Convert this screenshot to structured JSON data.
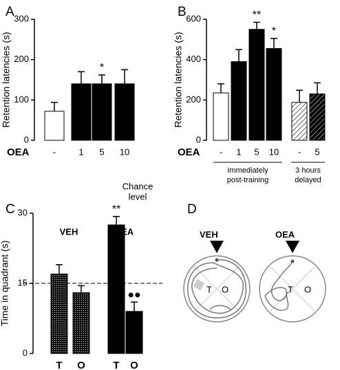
{
  "chart_data": [
    {
      "type": "bar",
      "panel": "A",
      "ylabel": "Retention latencies (s)",
      "xlabel": "OEA",
      "categories": [
        "-",
        "1",
        "5",
        "10"
      ],
      "values": [
        72,
        140,
        140,
        140
      ],
      "errors": [
        22,
        30,
        22,
        35
      ],
      "fills": [
        "#ffffff",
        "#000000",
        "#000000",
        "#000000"
      ],
      "annotations": [
        null,
        null,
        "*",
        null
      ],
      "ylim": [
        0,
        300
      ],
      "yticks": [
        0,
        100,
        200,
        300
      ]
    },
    {
      "type": "bar",
      "panel": "B",
      "ylabel": "Retention latencies (s)",
      "xlabel": "OEA",
      "categories": [
        "-",
        "1",
        "5",
        "10",
        "-",
        "5"
      ],
      "values": [
        235,
        390,
        550,
        455,
        188,
        230
      ],
      "errors": [
        45,
        60,
        35,
        50,
        60,
        55
      ],
      "fills": [
        "#ffffff",
        "#000000",
        "#000000",
        "#000000",
        "hatch-white",
        "hatch-black"
      ],
      "annotations": [
        null,
        null,
        "**",
        "*",
        null,
        null
      ],
      "groups": [
        [
          "Immediately",
          "post-training"
        ],
        [
          "3 hours",
          "delayed"
        ]
      ],
      "ylim": [
        0,
        600
      ],
      "yticks": [
        0,
        200,
        400,
        600
      ]
    },
    {
      "type": "bar",
      "panel": "C",
      "ylabel": "Time in quadrant (s)",
      "categories": [
        "T",
        "O",
        "T",
        "O"
      ],
      "values": [
        17,
        13,
        27.5,
        9
      ],
      "errors": [
        2,
        1.5,
        1.8,
        2
      ],
      "fills": [
        "stipple",
        "stipple",
        "#000000",
        "#000000"
      ],
      "annotations": [
        null,
        null,
        "**",
        "●●"
      ],
      "groups": [
        [
          "VEH"
        ],
        [
          "OEA"
        ]
      ],
      "hline": {
        "value": 15,
        "label": [
          "Chance",
          "level"
        ]
      },
      "ylim": [
        0,
        30
      ],
      "yticks": [
        0,
        15,
        30
      ]
    }
  ],
  "panel_d": {
    "label": "D",
    "maps": [
      {
        "title": "VEH",
        "labels": [
          "T",
          "O"
        ]
      },
      {
        "title": "OEA",
        "labels": [
          "T",
          "O"
        ]
      }
    ]
  }
}
